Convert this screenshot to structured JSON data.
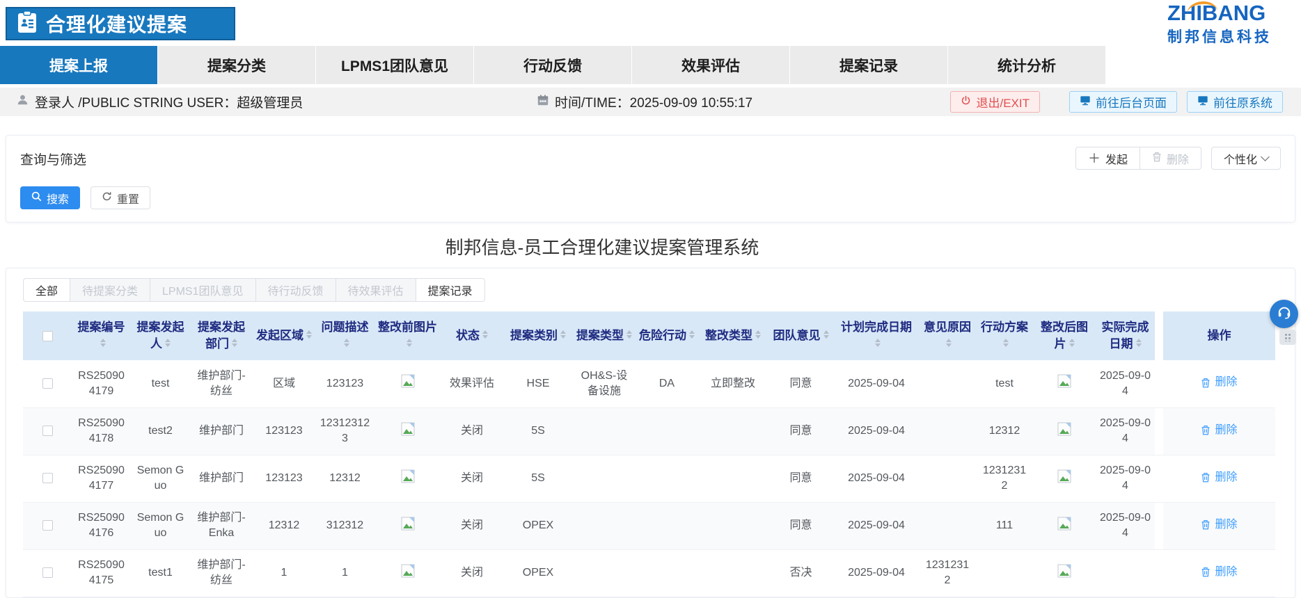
{
  "header": {
    "app_title": "合理化建议提案",
    "brand_name": "ZHIBANG",
    "brand_sub": "制邦信息科技"
  },
  "nav_tabs": [
    {
      "label": "提案上报",
      "active": true
    },
    {
      "label": "提案分类",
      "active": false
    },
    {
      "label": "LPMS1团队意见",
      "active": false
    },
    {
      "label": "行动反馈",
      "active": false
    },
    {
      "label": "效果评估",
      "active": false
    },
    {
      "label": "提案记录",
      "active": false
    },
    {
      "label": "统计分析",
      "active": false
    }
  ],
  "userbar": {
    "login_text": "登录人 /PUBLIC STRING USER：超级管理员",
    "time_text": "时间/TIME：2025-09-09 10:55:17",
    "exit_label": "退出/EXIT",
    "goto_backend_label": "前往后台页面",
    "goto_origin_label": "前往原系统"
  },
  "query": {
    "title": "查询与筛选",
    "launch_label": "发起",
    "delete_label": "删除",
    "personalize_label": "个性化",
    "search_label": "搜索",
    "reset_label": "重置"
  },
  "page_title": "制邦信息-员工合理化建议提案管理系统",
  "filter_tabs": [
    {
      "label": "全部",
      "state": "normal"
    },
    {
      "label": "待提案分类",
      "state": "disabled"
    },
    {
      "label": "LPMS1团队意见",
      "state": "disabled"
    },
    {
      "label": "待行动反馈",
      "state": "disabled"
    },
    {
      "label": "待效果评估",
      "state": "disabled"
    },
    {
      "label": "提案记录",
      "state": "active"
    }
  ],
  "table": {
    "columns": [
      {
        "key": "id",
        "label": "提案编号"
      },
      {
        "key": "proposer",
        "label": "提案发起人"
      },
      {
        "key": "dept",
        "label": "提案发起部门"
      },
      {
        "key": "area",
        "label": "发起区域"
      },
      {
        "key": "desc",
        "label": "问题描述"
      },
      {
        "key": "img_before",
        "label": "整改前图片"
      },
      {
        "key": "status",
        "label": "状态"
      },
      {
        "key": "category",
        "label": "提案类别"
      },
      {
        "key": "type",
        "label": "提案类型"
      },
      {
        "key": "danger",
        "label": "危险行动"
      },
      {
        "key": "rectify_type",
        "label": "整改类型"
      },
      {
        "key": "team_opinion",
        "label": "团队意见"
      },
      {
        "key": "plan_date",
        "label": "计划完成日期"
      },
      {
        "key": "opinion_reason",
        "label": "意见原因"
      },
      {
        "key": "action_plan",
        "label": "行动方案"
      },
      {
        "key": "img_after",
        "label": "整改后图片"
      },
      {
        "key": "actual_date",
        "label": "实际完成日期"
      }
    ],
    "action_column_label": "操作",
    "row_action_label": "删除",
    "rows": [
      {
        "id": "RS250904179",
        "proposer": "test",
        "dept": "维护部门-纺丝",
        "area": "区域",
        "desc": "123123",
        "img_before": true,
        "status": "效果评估",
        "category": "HSE",
        "type": "OH&S-设备设施",
        "danger": "DA",
        "rectify_type": "立即整改",
        "team_opinion": "同意",
        "plan_date": "2025-09-04",
        "opinion_reason": "",
        "action_plan": "test",
        "img_after": true,
        "actual_date": "2025-09-04"
      },
      {
        "id": "RS250904178",
        "proposer": "test2",
        "dept": "维护部门",
        "area": "123123",
        "desc": "123123123",
        "img_before": true,
        "status": "关闭",
        "category": "5S",
        "type": "",
        "danger": "",
        "rectify_type": "",
        "team_opinion": "同意",
        "plan_date": "2025-09-04",
        "opinion_reason": "",
        "action_plan": "12312",
        "img_after": true,
        "actual_date": "2025-09-04"
      },
      {
        "id": "RS250904177",
        "proposer": "Semon Guo",
        "dept": "维护部门",
        "area": "123123",
        "desc": "12312",
        "img_before": true,
        "status": "关闭",
        "category": "5S",
        "type": "",
        "danger": "",
        "rectify_type": "",
        "team_opinion": "同意",
        "plan_date": "2025-09-04",
        "opinion_reason": "",
        "action_plan": "12312312",
        "img_after": true,
        "actual_date": "2025-09-04"
      },
      {
        "id": "RS250904176",
        "proposer": "Semon Guo",
        "dept": "维护部门-Enka",
        "area": "12312",
        "desc": "312312",
        "img_before": true,
        "status": "关闭",
        "category": "OPEX",
        "type": "",
        "danger": "",
        "rectify_type": "",
        "team_opinion": "同意",
        "plan_date": "2025-09-04",
        "opinion_reason": "",
        "action_plan": "111",
        "img_after": true,
        "actual_date": "2025-09-04"
      },
      {
        "id": "RS250904175",
        "proposer": "test1",
        "dept": "维护部门-纺丝",
        "area": "1",
        "desc": "1",
        "img_before": true,
        "status": "关闭",
        "category": "OPEX",
        "type": "",
        "danger": "",
        "rectify_type": "",
        "team_opinion": "否决",
        "plan_date": "2025-09-04",
        "opinion_reason": "12312312",
        "action_plan": "",
        "img_after": true,
        "actual_date": ""
      }
    ]
  },
  "colors": {
    "primary_blue": "#1878be",
    "brand_blue": "#1565c0",
    "brand_orange": "#f39c2b",
    "search_button_blue": "#2d8cf0",
    "link_blue": "#409eff",
    "exit_red": "#e25050",
    "table_header_bg": "#d8e8f7",
    "table_header_text": "#1f2b80"
  }
}
